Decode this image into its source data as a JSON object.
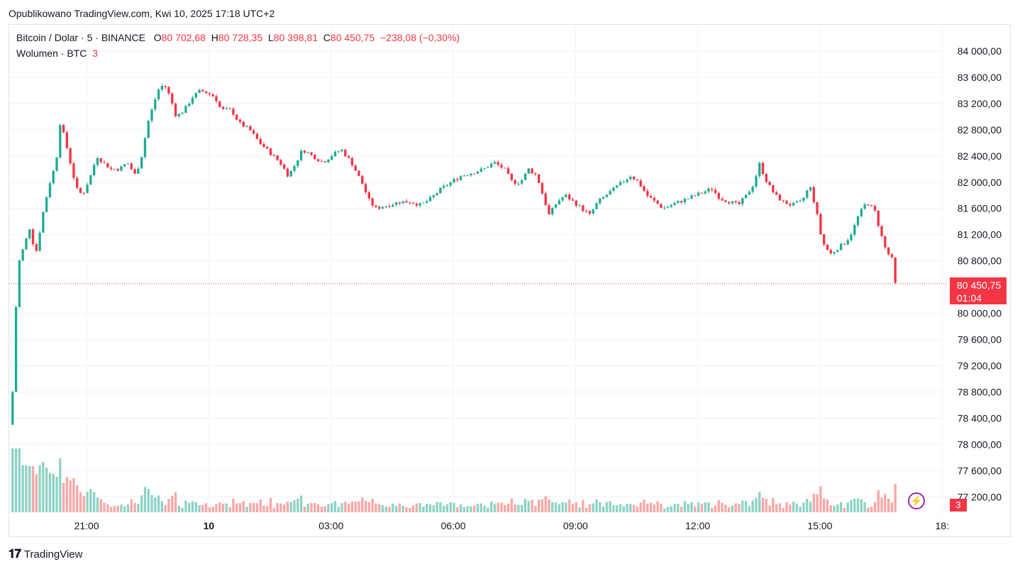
{
  "header": {
    "published": "Opublikowano TradingView.com, Kwi 10, 2025 17:18 UTC+2"
  },
  "legend": {
    "symbol": "Bitcoin / Dolar · 5 · BINANCE",
    "o_label": "O",
    "o_value": "80 702,68",
    "h_label": "H",
    "h_value": "80 728,35",
    "l_label": "L",
    "l_value": "80 398,81",
    "c_label": "C",
    "c_value": "80 450,75",
    "change": "−238,08 (−0,30%)",
    "volume_label": "Wolumen · BTC",
    "volume_value": "3"
  },
  "price_badge": {
    "price": "80 450,75",
    "countdown": "01:04"
  },
  "volume_badge": "3",
  "footer": {
    "brand": "TradingView"
  },
  "colors": {
    "up": "#22ab94",
    "down": "#f23645",
    "up_vol": "#8fd3c6",
    "down_vol": "#f7a9a7",
    "grid": "#f0f3fa"
  },
  "chart_data": {
    "type": "candlestick",
    "interval": "5",
    "y_axis": {
      "range": [
        76900,
        84400
      ],
      "ticks": [
        "84 000,00",
        "83 600,00",
        "83 200,00",
        "82 800,00",
        "82 400,00",
        "82 000,00",
        "81 600,00",
        "81 200,00",
        "80 800,00",
        "80 000,00",
        "79 600,00",
        "79 200,00",
        "78 800,00",
        "78 400,00",
        "78 000,00",
        "77 600,00",
        "77 200,00"
      ],
      "tick_values": [
        84000,
        83600,
        83200,
        82800,
        82400,
        82000,
        81600,
        81200,
        80800,
        80000,
        79600,
        79200,
        78800,
        78400,
        78000,
        77600,
        77200
      ]
    },
    "x_axis": {
      "ticks": [
        "21:00",
        "10",
        "03:00",
        "06:00",
        "09:00",
        "12:00",
        "15:00",
        "18:"
      ],
      "tick_hours": [
        21,
        24,
        27,
        30,
        33,
        36,
        39,
        42
      ]
    },
    "time_range_hours": [
      19.1,
      42.1
    ],
    "last_close": 80450.75,
    "close_path": [
      [
        19.1,
        78300
      ],
      [
        19.2,
        78900
      ],
      [
        19.3,
        80700
      ],
      [
        19.45,
        81000
      ],
      [
        19.6,
        81300
      ],
      [
        19.75,
        80900
      ],
      [
        19.95,
        81600
      ],
      [
        20.1,
        82000
      ],
      [
        20.25,
        82300
      ],
      [
        20.35,
        82900
      ],
      [
        20.45,
        82700
      ],
      [
        20.6,
        82300
      ],
      [
        20.75,
        81900
      ],
      [
        20.9,
        81800
      ],
      [
        21.1,
        82100
      ],
      [
        21.25,
        82400
      ],
      [
        21.4,
        82300
      ],
      [
        21.6,
        82200
      ],
      [
        21.8,
        82200
      ],
      [
        22.0,
        82300
      ],
      [
        22.2,
        82100
      ],
      [
        22.35,
        82400
      ],
      [
        22.5,
        82900
      ],
      [
        22.65,
        83200
      ],
      [
        22.75,
        83400
      ],
      [
        22.9,
        83500
      ],
      [
        23.05,
        83300
      ],
      [
        23.2,
        83000
      ],
      [
        23.4,
        83100
      ],
      [
        23.6,
        83300
      ],
      [
        23.8,
        83400
      ],
      [
        24.0,
        83350
      ],
      [
        24.15,
        83300
      ],
      [
        24.3,
        83100
      ],
      [
        24.55,
        83100
      ],
      [
        24.75,
        82900
      ],
      [
        25.0,
        82800
      ],
      [
        25.25,
        82600
      ],
      [
        25.5,
        82450
      ],
      [
        25.75,
        82300
      ],
      [
        25.95,
        82100
      ],
      [
        26.1,
        82250
      ],
      [
        26.3,
        82500
      ],
      [
        26.55,
        82400
      ],
      [
        26.8,
        82300
      ],
      [
        27.0,
        82400
      ],
      [
        27.25,
        82500
      ],
      [
        27.5,
        82300
      ],
      [
        27.75,
        82000
      ],
      [
        27.95,
        81700
      ],
      [
        28.1,
        81600
      ],
      [
        28.4,
        81650
      ],
      [
        28.7,
        81700
      ],
      [
        28.95,
        81700
      ],
      [
        29.2,
        81650
      ],
      [
        29.45,
        81750
      ],
      [
        29.7,
        81900
      ],
      [
        29.95,
        82000
      ],
      [
        30.2,
        82100
      ],
      [
        30.5,
        82150
      ],
      [
        30.75,
        82200
      ],
      [
        31.0,
        82300
      ],
      [
        31.25,
        82200
      ],
      [
        31.45,
        82000
      ],
      [
        31.65,
        82000
      ],
      [
        31.85,
        82200
      ],
      [
        32.05,
        82100
      ],
      [
        32.2,
        81800
      ],
      [
        32.35,
        81500
      ],
      [
        32.55,
        81700
      ],
      [
        32.75,
        81800
      ],
      [
        32.95,
        81700
      ],
      [
        33.15,
        81600
      ],
      [
        33.35,
        81500
      ],
      [
        33.55,
        81700
      ],
      [
        33.75,
        81800
      ],
      [
        33.95,
        81900
      ],
      [
        34.15,
        82000
      ],
      [
        34.35,
        82100
      ],
      [
        34.55,
        82000
      ],
      [
        34.75,
        81800
      ],
      [
        34.95,
        81700
      ],
      [
        35.15,
        81600
      ],
      [
        35.35,
        81650
      ],
      [
        35.55,
        81700
      ],
      [
        35.75,
        81750
      ],
      [
        35.95,
        81800
      ],
      [
        36.15,
        81850
      ],
      [
        36.35,
        81900
      ],
      [
        36.55,
        81750
      ],
      [
        36.8,
        81700
      ],
      [
        37.0,
        81650
      ],
      [
        37.2,
        81800
      ],
      [
        37.4,
        82000
      ],
      [
        37.5,
        82300
      ],
      [
        37.7,
        82000
      ],
      [
        37.9,
        81800
      ],
      [
        38.1,
        81700
      ],
      [
        38.3,
        81650
      ],
      [
        38.55,
        81700
      ],
      [
        38.75,
        81950
      ],
      [
        38.9,
        81600
      ],
      [
        39.05,
        81100
      ],
      [
        39.25,
        80900
      ],
      [
        39.45,
        81000
      ],
      [
        39.65,
        81100
      ],
      [
        39.8,
        81250
      ],
      [
        39.95,
        81500
      ],
      [
        40.15,
        81700
      ],
      [
        40.35,
        81550
      ],
      [
        40.5,
        81200
      ],
      [
        40.65,
        80900
      ],
      [
        40.75,
        80900
      ],
      [
        40.85,
        80450
      ]
    ],
    "volume_note": "volume bars in BTC below price; latest volume 3"
  }
}
